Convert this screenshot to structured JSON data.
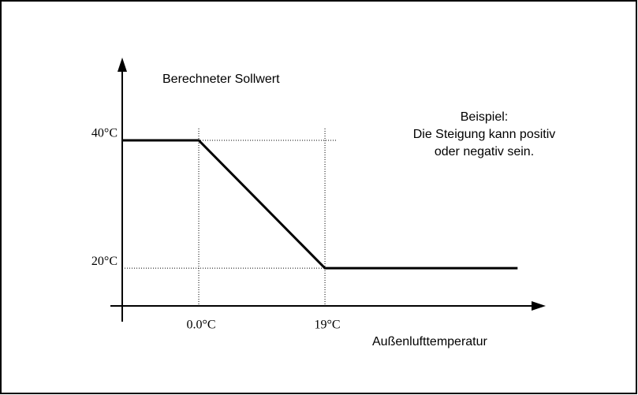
{
  "chart_data": {
    "type": "line",
    "y_label": "Berechneter Sollwert",
    "x_label": "Außenlufttemperatur",
    "annotation": [
      "Beispiel:",
      "Die Steigung kann positiv",
      "oder negativ sein."
    ],
    "x": [
      -11.5,
      0,
      19,
      48
    ],
    "series": [
      {
        "name": null,
        "color": "#000000",
        "values": [
          40,
          40,
          20,
          20
        ]
      }
    ],
    "xlim": [
      -13.3,
      52
    ],
    "ylim": [
      14.1,
      52.7
    ],
    "xticks": [
      {
        "value": 0,
        "label": "0.0°C"
      },
      {
        "value": 19,
        "label": "19°C"
      }
    ],
    "yticks": [
      {
        "value": 20,
        "label": "20°C"
      },
      {
        "value": 40,
        "label": "40°C"
      }
    ]
  }
}
